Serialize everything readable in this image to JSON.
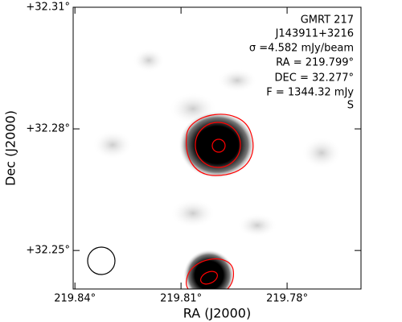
{
  "chart_data": {
    "type": "image",
    "annotations": [
      "GMRT 217",
      "J143911+3216",
      "σ =4.582 mJy/beam",
      "RA = 219.799°",
      "DEC = 32.277°",
      "F = 1344.32 mJy",
      "S"
    ],
    "xlabel": "RA (J2000)",
    "ylabel": "Dec (J2000)",
    "xlim": [
      219.8405,
      219.7591
    ],
    "ylim": [
      32.2405,
      32.31
    ],
    "xticks": [
      {
        "value": 219.84,
        "label": "219.84°"
      },
      {
        "value": 219.81,
        "label": "219.81°"
      },
      {
        "value": 219.78,
        "label": "219.78°"
      }
    ],
    "yticks": [
      {
        "value": 32.31,
        "label": "+32.31°"
      },
      {
        "value": 32.28,
        "label": "+32.28°"
      },
      {
        "value": 32.25,
        "label": "+32.25°"
      }
    ]
  }
}
